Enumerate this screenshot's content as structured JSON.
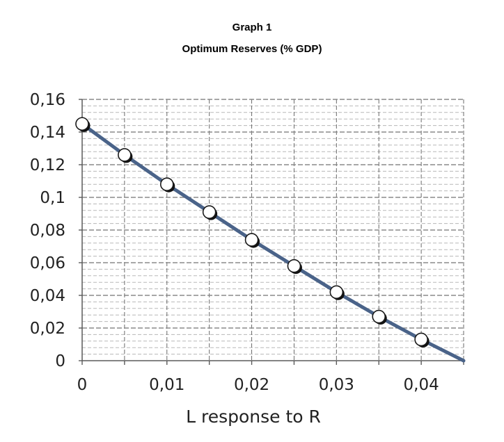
{
  "chart_data": {
    "type": "line",
    "title": "Graph 1",
    "subtitle": "Optimum Reserves (% GDP)",
    "xlabel": "L response to  R",
    "ylabel": "",
    "xlim": [
      0,
      0.045
    ],
    "ylim": [
      0,
      0.16
    ],
    "x_ticks": [
      0,
      0.01,
      0.02,
      0.03,
      0.04
    ],
    "x_tick_labels": [
      "0",
      "0,01",
      "0,02",
      "0,03",
      "0,04"
    ],
    "y_ticks": [
      0,
      0.02,
      0.04,
      0.06,
      0.08,
      0.1,
      0.12,
      0.14,
      0.16
    ],
    "y_tick_labels": [
      "0",
      "0,02",
      "0,04",
      "0,06",
      "0,08",
      "0,1",
      "0,12",
      "0,14",
      "0,16"
    ],
    "grid": true,
    "legend": "none",
    "line_color": "#4a6389",
    "marker_fill": "#ffffff",
    "marker_edge": "#1a1a1a",
    "series": [
      {
        "x": [
          0,
          0.005,
          0.01,
          0.015,
          0.02,
          0.025,
          0.03,
          0.035,
          0.04,
          0.045
        ],
        "y": [
          0.145,
          0.126,
          0.108,
          0.091,
          0.074,
          0.058,
          0.042,
          0.027,
          0.013,
          0
        ],
        "markers": [
          true,
          true,
          true,
          true,
          true,
          true,
          true,
          true,
          true,
          false
        ]
      }
    ]
  }
}
